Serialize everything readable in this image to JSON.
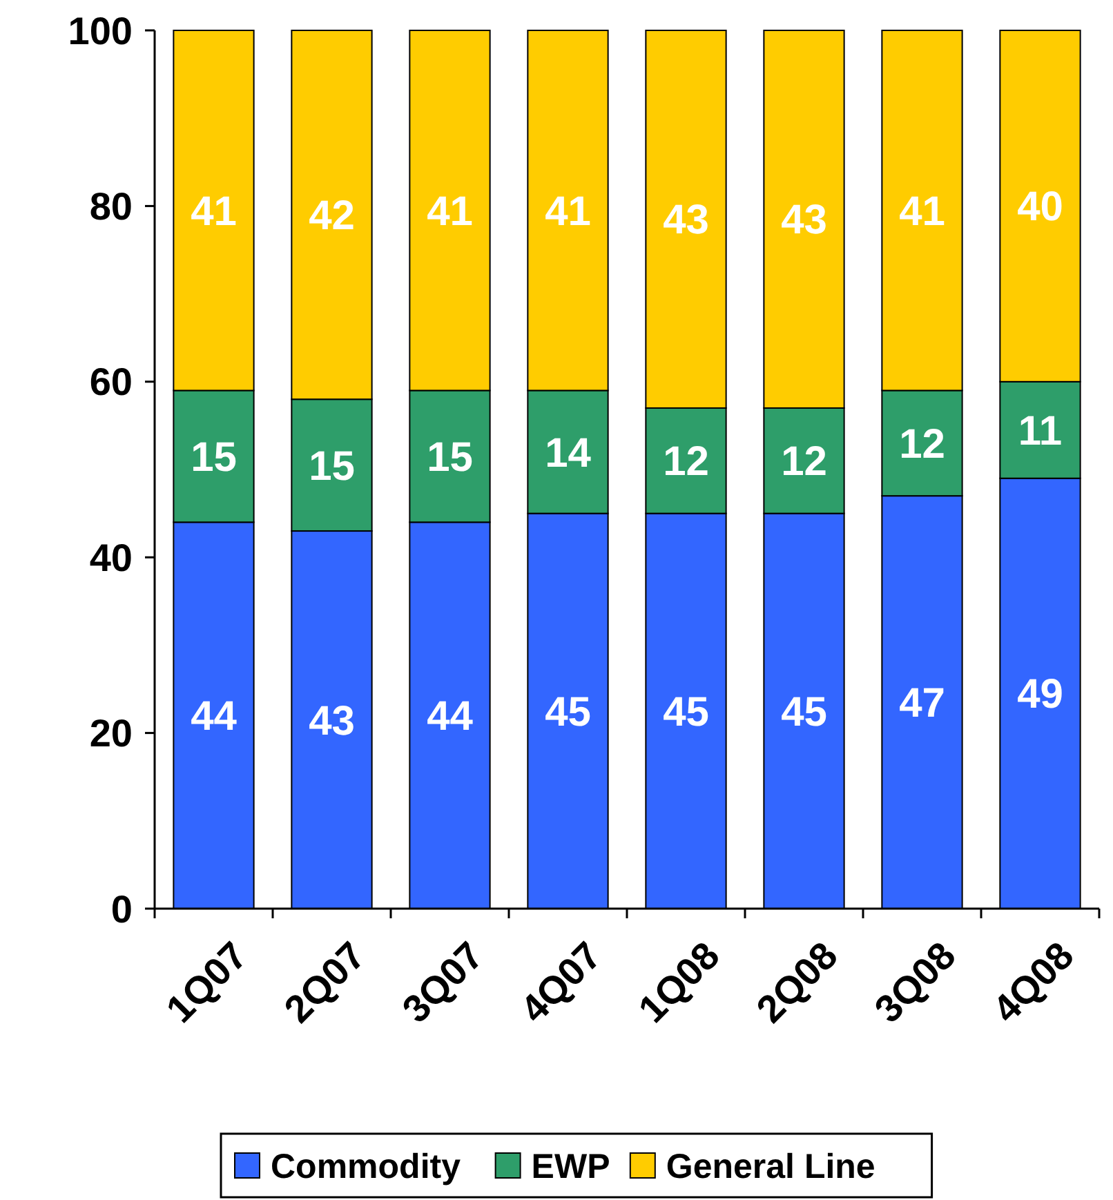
{
  "chart_data": {
    "type": "bar",
    "stacked": true,
    "categories": [
      "1Q07",
      "2Q07",
      "3Q07",
      "4Q07",
      "1Q08",
      "2Q08",
      "3Q08",
      "4Q08"
    ],
    "series": [
      {
        "name": "Commodity",
        "color": "#3366ff",
        "values": [
          44,
          43,
          44,
          45,
          45,
          45,
          47,
          49
        ]
      },
      {
        "name": "EWP",
        "color": "#2e9e6a",
        "values": [
          15,
          15,
          15,
          14,
          12,
          12,
          12,
          11
        ]
      },
      {
        "name": "General Line",
        "color": "#ffcc00",
        "values": [
          41,
          42,
          41,
          41,
          43,
          43,
          41,
          40
        ]
      }
    ],
    "ylim": [
      0,
      100
    ],
    "yticks": [
      0,
      20,
      40,
      60,
      80,
      100
    ],
    "data_labels": true,
    "legend": "bottom",
    "grid": false
  }
}
